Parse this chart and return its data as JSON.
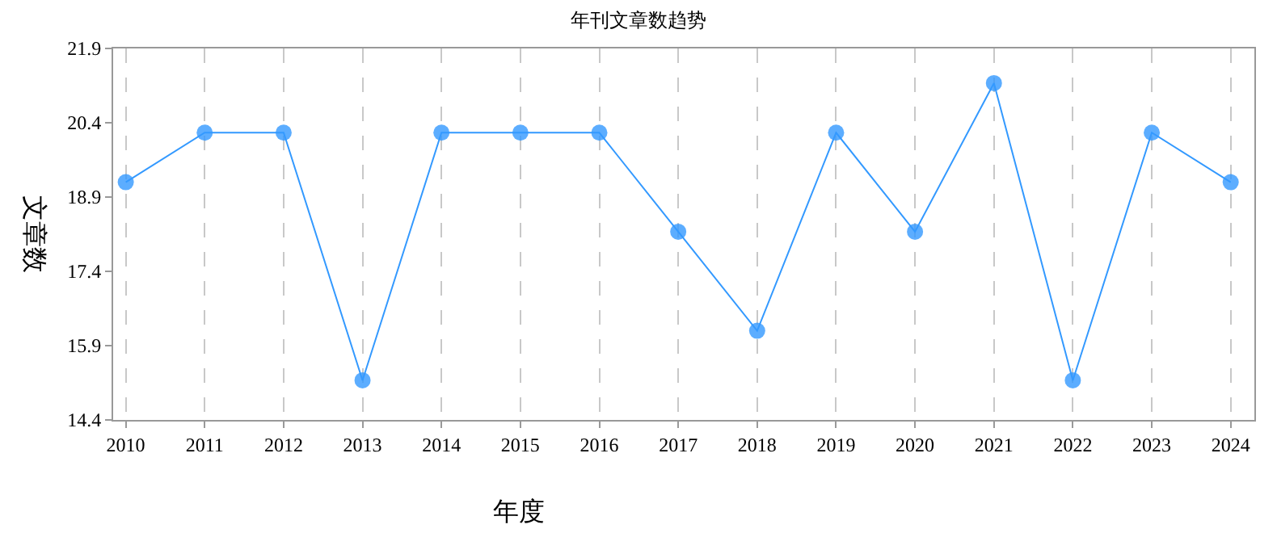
{
  "chart_data": {
    "type": "line",
    "title": "年刊文章数趋势",
    "xlabel": "年度",
    "ylabel": "文章数",
    "x": [
      2010,
      2011,
      2012,
      2013,
      2014,
      2015,
      2016,
      2017,
      2018,
      2019,
      2020,
      2021,
      2022,
      2023,
      2024
    ],
    "series": [
      {
        "color": "#3399ff",
        "values": [
          19.2,
          20.2,
          20.2,
          15.2,
          20.2,
          20.2,
          20.2,
          18.2,
          16.2,
          20.2,
          18.2,
          21.2,
          15.2,
          20.2,
          19.2
        ]
      }
    ],
    "xlim": [
      2009.84,
      2024.3
    ],
    "xticks": [
      2010,
      2011,
      2012,
      2013,
      2014,
      2015,
      2016,
      2017,
      2018,
      2019,
      2020,
      2021,
      2022,
      2023,
      2024
    ],
    "ylim": [
      14.4,
      21.9
    ],
    "yticks": [
      14.4,
      15.9,
      17.4,
      18.9,
      20.4,
      21.9
    ],
    "grid": "x",
    "marker": "circle",
    "line_style": "solid",
    "legend": false
  }
}
